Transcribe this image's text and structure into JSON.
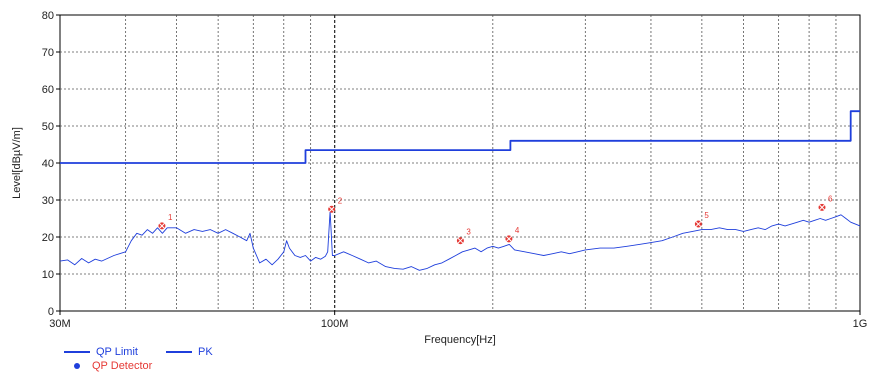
{
  "chart_data": {
    "type": "line",
    "title": "",
    "xlabel": "Frequency[Hz]",
    "ylabel": "Level[dBµV/m]",
    "x_scale": "log",
    "xlim": [
      30,
      1000
    ],
    "ylim": [
      0,
      80
    ],
    "y_ticks": [
      0,
      10,
      20,
      30,
      40,
      50,
      60,
      70,
      80
    ],
    "y_tick_labels": [
      "0",
      "10",
      "20",
      "30",
      "40",
      "50",
      "60",
      "70",
      "80"
    ],
    "x_tick_labels": [
      {
        "value": 30,
        "label": "30M"
      },
      {
        "value": 100,
        "label": "100M"
      },
      {
        "value": 1000,
        "label": "1G"
      }
    ],
    "grid": true,
    "legend_position": "bottom-left",
    "series": [
      {
        "name": "QP Limit",
        "color": "#1f3fdc",
        "style": "step",
        "points": [
          [
            30,
            40
          ],
          [
            88,
            40
          ],
          [
            88,
            43.5
          ],
          [
            216,
            43.5
          ],
          [
            216,
            46
          ],
          [
            960,
            46
          ],
          [
            960,
            54
          ],
          [
            1000,
            54
          ]
        ]
      },
      {
        "name": "PK",
        "color": "#1f3fdc",
        "style": "line",
        "points": [
          [
            30,
            13.5
          ],
          [
            31,
            13.8
          ],
          [
            32,
            12.5
          ],
          [
            33,
            14.2
          ],
          [
            34,
            13
          ],
          [
            35,
            14
          ],
          [
            36,
            13.5
          ],
          [
            38,
            15
          ],
          [
            40,
            16
          ],
          [
            41,
            19
          ],
          [
            42,
            21
          ],
          [
            43,
            20.5
          ],
          [
            44,
            22
          ],
          [
            45,
            21
          ],
          [
            46,
            22.5
          ],
          [
            47,
            21
          ],
          [
            48,
            22.5
          ],
          [
            50,
            22.5
          ],
          [
            52,
            21
          ],
          [
            54,
            22
          ],
          [
            56,
            21.5
          ],
          [
            58,
            22
          ],
          [
            60,
            21
          ],
          [
            62,
            22
          ],
          [
            64,
            21
          ],
          [
            66,
            20
          ],
          [
            68,
            19
          ],
          [
            69,
            21
          ],
          [
            70,
            17
          ],
          [
            71,
            15
          ],
          [
            72,
            13
          ],
          [
            74,
            14
          ],
          [
            76,
            12.5
          ],
          [
            78,
            14
          ],
          [
            80,
            16
          ],
          [
            81,
            19
          ],
          [
            82,
            17
          ],
          [
            84,
            15
          ],
          [
            86,
            14.5
          ],
          [
            88,
            15
          ],
          [
            90,
            13.5
          ],
          [
            92,
            14.5
          ],
          [
            94,
            14
          ],
          [
            96,
            14.8
          ],
          [
            97,
            16
          ],
          [
            98,
            27
          ],
          [
            99,
            15
          ],
          [
            100,
            15
          ],
          [
            104,
            16
          ],
          [
            108,
            15
          ],
          [
            112,
            14
          ],
          [
            116,
            13
          ],
          [
            120,
            13.5
          ],
          [
            125,
            12
          ],
          [
            130,
            11.5
          ],
          [
            135,
            11.3
          ],
          [
            140,
            12
          ],
          [
            145,
            11
          ],
          [
            150,
            11.5
          ],
          [
            155,
            12.5
          ],
          [
            160,
            13
          ],
          [
            165,
            14
          ],
          [
            170,
            15
          ],
          [
            175,
            16
          ],
          [
            180,
            16.5
          ],
          [
            185,
            17
          ],
          [
            190,
            16
          ],
          [
            195,
            17
          ],
          [
            200,
            17.5
          ],
          [
            205,
            17
          ],
          [
            210,
            17.5
          ],
          [
            215,
            18
          ],
          [
            220,
            16.5
          ],
          [
            230,
            16
          ],
          [
            240,
            15.5
          ],
          [
            250,
            15
          ],
          [
            260,
            15.5
          ],
          [
            270,
            16
          ],
          [
            280,
            15.5
          ],
          [
            290,
            16
          ],
          [
            300,
            16.5
          ],
          [
            320,
            17
          ],
          [
            340,
            17
          ],
          [
            360,
            17.5
          ],
          [
            380,
            18
          ],
          [
            400,
            18.5
          ],
          [
            420,
            19
          ],
          [
            440,
            20
          ],
          [
            460,
            21
          ],
          [
            480,
            21.5
          ],
          [
            500,
            22
          ],
          [
            520,
            22
          ],
          [
            540,
            22.5
          ],
          [
            560,
            22
          ],
          [
            580,
            22
          ],
          [
            600,
            21.5
          ],
          [
            620,
            22
          ],
          [
            640,
            22.5
          ],
          [
            660,
            22
          ],
          [
            680,
            23
          ],
          [
            700,
            23.5
          ],
          [
            720,
            23
          ],
          [
            740,
            23.5
          ],
          [
            760,
            24
          ],
          [
            780,
            24.5
          ],
          [
            800,
            24
          ],
          [
            820,
            24.5
          ],
          [
            840,
            25
          ],
          [
            860,
            24.5
          ],
          [
            880,
            25
          ],
          [
            900,
            25.5
          ],
          [
            920,
            26
          ],
          [
            940,
            25
          ],
          [
            960,
            24
          ],
          [
            980,
            23.5
          ],
          [
            1000,
            23
          ]
        ]
      },
      {
        "name": "QP Detector",
        "color": "#e53935",
        "style": "markers",
        "points": [
          {
            "x": 46.9,
            "y": 23,
            "label": "1"
          },
          {
            "x": 98.7,
            "y": 27.5,
            "label": "2"
          },
          {
            "x": 173.5,
            "y": 19,
            "label": "3"
          },
          {
            "x": 214.6,
            "y": 19.5,
            "label": "4"
          },
          {
            "x": 492.4,
            "y": 23.5,
            "label": "5"
          },
          {
            "x": 846.6,
            "y": 28,
            "label": "6"
          }
        ]
      }
    ]
  }
}
